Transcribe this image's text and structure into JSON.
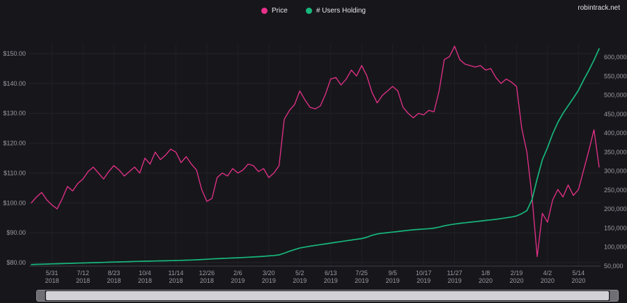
{
  "header": {
    "legend": [
      {
        "label": "Price",
        "color": "#e8308a"
      },
      {
        "label": "# Users Holding",
        "color": "#17b87c"
      }
    ],
    "watermark": "robintrack.net"
  },
  "chart_data": {
    "type": "line",
    "title": "",
    "legend_position": "top-center",
    "grid": true,
    "x_dates": [
      "2018-05-03",
      "2018-05-10",
      "2018-05-17",
      "2018-05-24",
      "2018-05-31",
      "2018-06-07",
      "2018-06-14",
      "2018-06-21",
      "2018-06-28",
      "2018-07-05",
      "2018-07-12",
      "2018-07-19",
      "2018-07-26",
      "2018-08-02",
      "2018-08-09",
      "2018-08-16",
      "2018-08-23",
      "2018-08-30",
      "2018-09-06",
      "2018-09-13",
      "2018-09-20",
      "2018-09-27",
      "2018-10-04",
      "2018-10-11",
      "2018-10-18",
      "2018-10-25",
      "2018-11-01",
      "2018-11-08",
      "2018-11-15",
      "2018-11-22",
      "2018-11-29",
      "2018-12-06",
      "2018-12-13",
      "2018-12-20",
      "2018-12-27",
      "2019-01-03",
      "2019-01-10",
      "2019-01-17",
      "2019-01-24",
      "2019-01-31",
      "2019-02-07",
      "2019-02-14",
      "2019-02-21",
      "2019-02-28",
      "2019-03-07",
      "2019-03-14",
      "2019-03-21",
      "2019-03-28",
      "2019-04-04",
      "2019-04-11",
      "2019-04-18",
      "2019-04-25",
      "2019-05-02",
      "2019-05-09",
      "2019-05-16",
      "2019-05-23",
      "2019-05-30",
      "2019-06-06",
      "2019-06-13",
      "2019-06-20",
      "2019-06-27",
      "2019-07-04",
      "2019-07-11",
      "2019-07-18",
      "2019-07-25",
      "2019-08-01",
      "2019-08-08",
      "2019-08-15",
      "2019-08-22",
      "2019-08-29",
      "2019-09-05",
      "2019-09-12",
      "2019-09-19",
      "2019-09-26",
      "2019-10-03",
      "2019-10-10",
      "2019-10-17",
      "2019-10-24",
      "2019-10-31",
      "2019-11-07",
      "2019-11-14",
      "2019-11-21",
      "2019-11-28",
      "2019-12-05",
      "2019-12-12",
      "2019-12-19",
      "2019-12-26",
      "2020-01-02",
      "2020-01-09",
      "2020-01-16",
      "2020-01-23",
      "2020-01-30",
      "2020-02-06",
      "2020-02-13",
      "2020-02-20",
      "2020-02-27",
      "2020-03-05",
      "2020-03-12",
      "2020-03-19",
      "2020-03-26",
      "2020-04-02",
      "2020-04-09",
      "2020-04-16",
      "2020-04-23",
      "2020-04-30",
      "2020-05-07",
      "2020-05-14",
      "2020-05-21",
      "2020-05-28",
      "2020-06-04",
      "2020-06-11"
    ],
    "series": [
      {
        "name": "Price",
        "axis": "left",
        "color": "#e8308a",
        "values": [
          100.0,
          102.0,
          103.5,
          101.0,
          99.3,
          98.0,
          101.5,
          105.5,
          104.0,
          106.5,
          108.0,
          110.5,
          112.0,
          110.0,
          108.0,
          110.5,
          112.5,
          111.0,
          109.0,
          110.5,
          112.0,
          110.0,
          115.0,
          113.0,
          117.0,
          114.5,
          116.0,
          118.0,
          117.0,
          113.5,
          115.5,
          113.0,
          111.0,
          104.5,
          100.5,
          101.5,
          108.5,
          110.0,
          109.0,
          111.5,
          110.0,
          111.0,
          113.0,
          112.5,
          110.5,
          111.5,
          108.5,
          110.0,
          112.5,
          128.0,
          131.0,
          133.0,
          137.5,
          134.5,
          132.0,
          131.5,
          132.5,
          136.5,
          141.5,
          142.0,
          139.5,
          141.5,
          144.5,
          142.5,
          146.0,
          142.5,
          137.0,
          133.5,
          136.0,
          137.5,
          139.0,
          137.5,
          132.0,
          130.0,
          128.5,
          130.0,
          129.5,
          131.0,
          130.5,
          137.5,
          148.0,
          149.0,
          152.5,
          148.0,
          146.5,
          146.0,
          145.5,
          146.0,
          144.5,
          145.0,
          142.0,
          140.0,
          141.5,
          140.5,
          139.0,
          125.0,
          117.0,
          102.0,
          82.0,
          96.5,
          93.5,
          101.0,
          104.5,
          102.0,
          106.0,
          102.5,
          104.5,
          111.0,
          117.5,
          124.5,
          112.0
        ]
      },
      {
        "name": "# Users Holding",
        "axis": "right",
        "color": "#17b87c",
        "values": [
          54000,
          54500,
          55000,
          55400,
          55800,
          56200,
          56600,
          57000,
          57400,
          57800,
          58200,
          58600,
          59000,
          59400,
          59800,
          60200,
          60600,
          61000,
          61400,
          61800,
          62200,
          62500,
          62800,
          63100,
          63400,
          63700,
          64000,
          64300,
          64700,
          65100,
          65500,
          66000,
          66500,
          67200,
          68000,
          68800,
          69500,
          70100,
          70700,
          71300,
          71900,
          72500,
          73200,
          74000,
          74800,
          75700,
          76700,
          77800,
          79500,
          84000,
          89000,
          93500,
          97500,
          100000,
          102500,
          104500,
          106500,
          108500,
          110500,
          112500,
          114500,
          116500,
          118500,
          120500,
          122500,
          126000,
          131000,
          134500,
          136500,
          138000,
          139500,
          141000,
          142500,
          144000,
          145500,
          146500,
          147500,
          148500,
          150000,
          152500,
          156000,
          158500,
          160500,
          162500,
          164000,
          165500,
          167000,
          168500,
          170000,
          171500,
          173000,
          175000,
          177000,
          179000,
          182000,
          188000,
          196000,
          225000,
          280000,
          330000,
          362000,
          398000,
          428000,
          452000,
          472000,
          492000,
          513000,
          540000,
          565000,
          592000,
          622000
        ]
      }
    ],
    "left_axis": {
      "min": 80,
      "max": 150,
      "tick_step": 10,
      "tick_values": [
        150,
        140,
        130,
        120,
        110,
        100,
        90,
        80
      ],
      "tick_labels": [
        "$150.00",
        "$140.00",
        "$130.00",
        "$120.00",
        "$110.00",
        "$100.00",
        "$90.00",
        "$80.00"
      ]
    },
    "right_axis": {
      "min": 50000,
      "max": 600000,
      "tick_step": 50000,
      "tick_values": [
        600000,
        550000,
        500000,
        450000,
        400000,
        350000,
        300000,
        250000,
        200000,
        150000,
        100000,
        50000
      ],
      "tick_labels": [
        "600,000",
        "550,000",
        "500,000",
        "450,000",
        "400,000",
        "350,000",
        "300,000",
        "250,000",
        "200,000",
        "150,000",
        "100,000",
        "50,000"
      ]
    },
    "x_ticks": [
      {
        "index": 4,
        "line1": "5/31",
        "line2": "2018"
      },
      {
        "index": 10,
        "line1": "7/12",
        "line2": "2018"
      },
      {
        "index": 16,
        "line1": "8/23",
        "line2": "2018"
      },
      {
        "index": 22,
        "line1": "10/4",
        "line2": "2018"
      },
      {
        "index": 28,
        "line1": "11/14",
        "line2": "2018"
      },
      {
        "index": 34,
        "line1": "12/26",
        "line2": "2018"
      },
      {
        "index": 40,
        "line1": "2/6",
        "line2": "2019"
      },
      {
        "index": 46,
        "line1": "3/20",
        "line2": "2019"
      },
      {
        "index": 52,
        "line1": "5/2",
        "line2": "2019"
      },
      {
        "index": 58,
        "line1": "6/13",
        "line2": "2019"
      },
      {
        "index": 64,
        "line1": "7/25",
        "line2": "2019"
      },
      {
        "index": 70,
        "line1": "9/5",
        "line2": "2019"
      },
      {
        "index": 76,
        "line1": "10/17",
        "line2": "2019"
      },
      {
        "index": 82,
        "line1": "11/27",
        "line2": "2019"
      },
      {
        "index": 88,
        "line1": "1/8",
        "line2": "2020"
      },
      {
        "index": 94,
        "line1": "2/19",
        "line2": "2020"
      },
      {
        "index": 100,
        "line1": "4/2",
        "line2": "2020"
      },
      {
        "index": 106,
        "line1": "5/14",
        "line2": "2020"
      }
    ]
  },
  "scrollbar": {
    "description": "time-range scrollbar, full range selected"
  }
}
